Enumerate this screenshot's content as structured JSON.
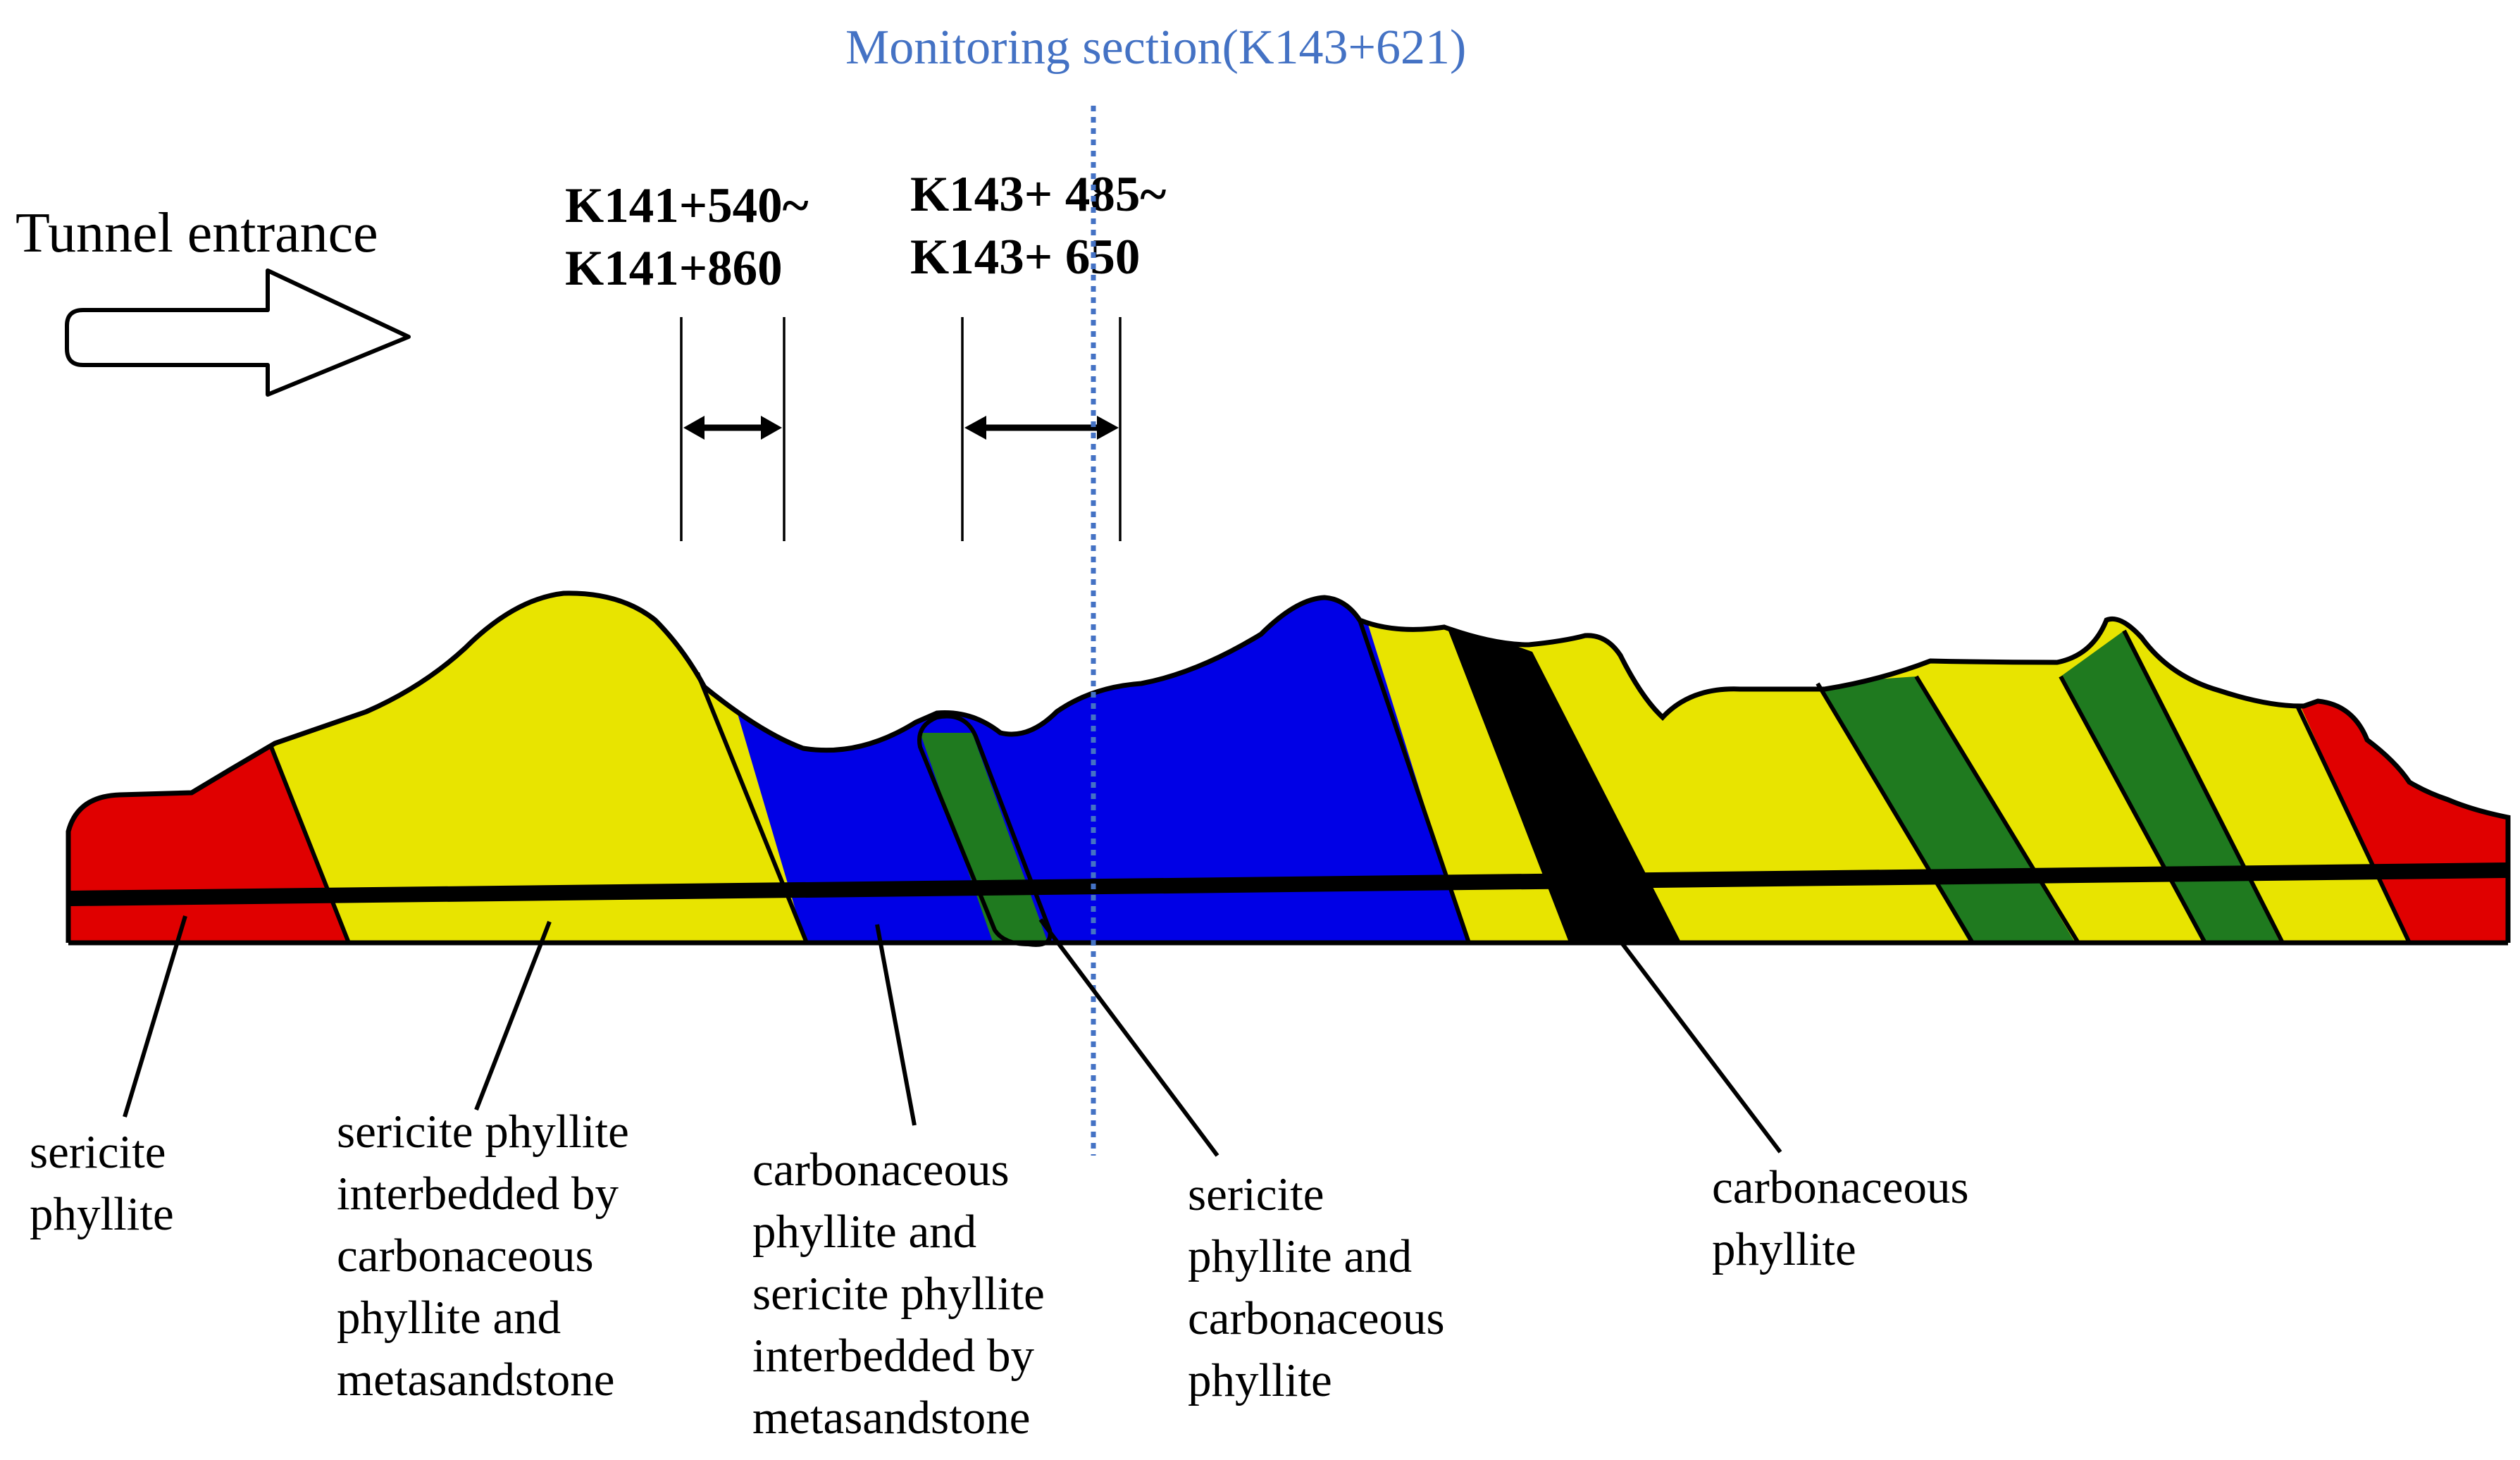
{
  "diagram": {
    "monitoring_section_label": "Monitoring section(K143+621)",
    "tunnel_entrance_label": "Tunnel  entrance",
    "chainage_1": {
      "line1": "K141+540~",
      "line2": "K141+860"
    },
    "chainage_2": {
      "line1": "K143+ 485~",
      "line2": "K143+ 650"
    },
    "legend": [
      {
        "lines": [
          "sericite",
          "phyllite"
        ]
      },
      {
        "lines": [
          "sericite phyllite",
          "interbedded by",
          "carbonaceous",
          "phyllite and",
          "metasandstone"
        ]
      },
      {
        "lines": [
          "carbonaceous",
          "phyllite and",
          "sericite phyllite",
          "interbedded by",
          "metasandstone"
        ]
      },
      {
        "lines": [
          "sericite",
          "phyllite and",
          "carbonaceous",
          "phyllite"
        ]
      },
      {
        "lines": [
          "carbonaceous",
          "phyllite"
        ]
      }
    ],
    "colors": {
      "red": "#e00000",
      "yellow": "#e8e400",
      "blue": "#0000e6",
      "green": "#1f7a1f",
      "black": "#000000",
      "monitoring_line": "#4472c4"
    }
  }
}
